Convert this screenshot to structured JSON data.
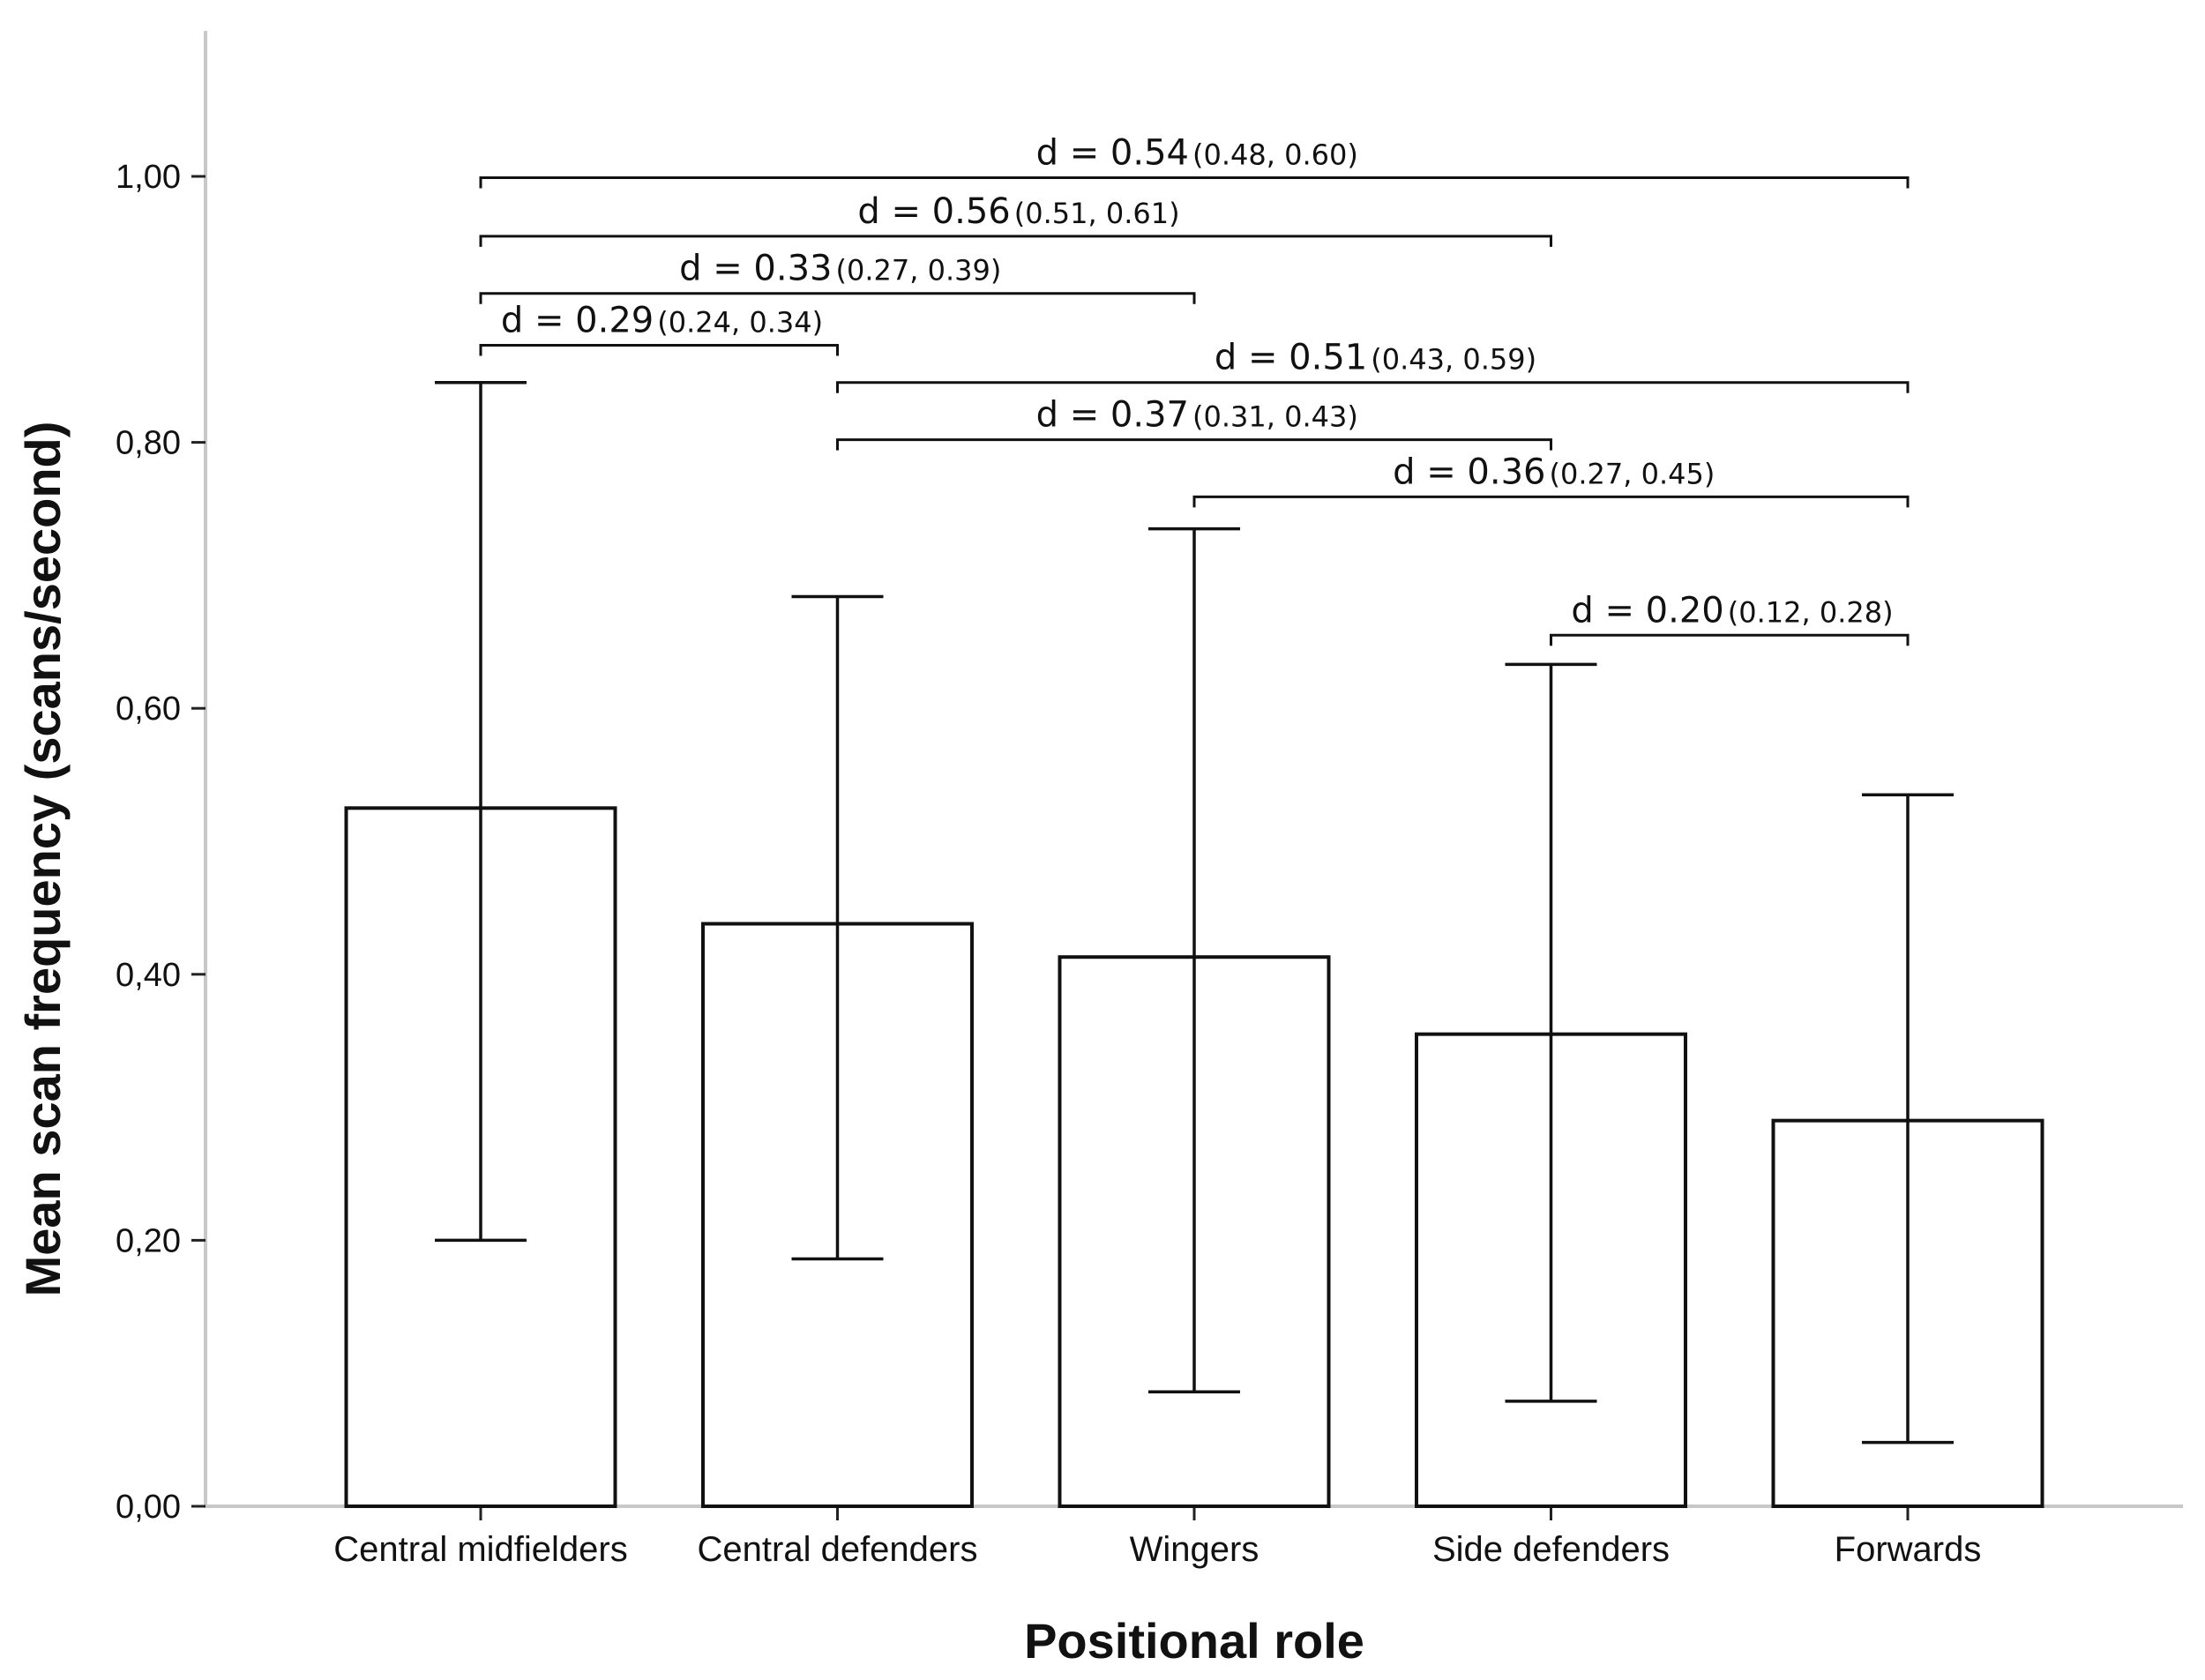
{
  "chart_data": {
    "type": "bar",
    "categories": [
      "Central midfielders",
      "Central defenders",
      "Wingers",
      "Side defenders",
      "Forwards"
    ],
    "values": [
      0.525,
      0.438,
      0.413,
      0.355,
      0.29
    ],
    "error_bars": [
      {
        "low": 0.2,
        "high": 0.845
      },
      {
        "low": 0.186,
        "high": 0.684
      },
      {
        "low": 0.086,
        "high": 0.735
      },
      {
        "low": 0.079,
        "high": 0.633
      },
      {
        "low": 0.048,
        "high": 0.535
      }
    ],
    "xlabel": "Positional role",
    "ylabel": "Mean scan frequency (scans/second)",
    "ylim": [
      0,
      1.1
    ],
    "yticks": [
      0,
      0.2,
      0.4,
      0.6,
      0.8,
      1.0
    ],
    "ytick_labels": [
      "0,00",
      "0,20",
      "0,40",
      "0,60",
      "0,80",
      "1,00"
    ],
    "grid": false,
    "comparisons": [
      {
        "from": 0,
        "to": 4,
        "level": 0.999,
        "d": "d = 0.54",
        "ci": "(0.48, 0.60)"
      },
      {
        "from": 0,
        "to": 3,
        "level": 0.955,
        "d": "d = 0.56",
        "ci": "(0.51, 0.61)"
      },
      {
        "from": 0,
        "to": 2,
        "level": 0.912,
        "d": "d = 0.33",
        "ci": "(0.27, 0.39)"
      },
      {
        "from": 0,
        "to": 1,
        "level": 0.873,
        "d": "d = 0.29",
        "ci": "(0.24, 0.34)"
      },
      {
        "from": 1,
        "to": 4,
        "level": 0.845,
        "d": "d = 0.51",
        "ci": "(0.43, 0.59)"
      },
      {
        "from": 1,
        "to": 3,
        "level": 0.802,
        "d": "d = 0.37",
        "ci": "(0.31, 0.43)"
      },
      {
        "from": 2,
        "to": 4,
        "level": 0.759,
        "d": "d = 0.36",
        "ci": "(0.27, 0.45)"
      },
      {
        "from": 3,
        "to": 4,
        "level": 0.655,
        "d": "d = 0.20",
        "ci": "(0.12, 0.28)"
      }
    ]
  }
}
